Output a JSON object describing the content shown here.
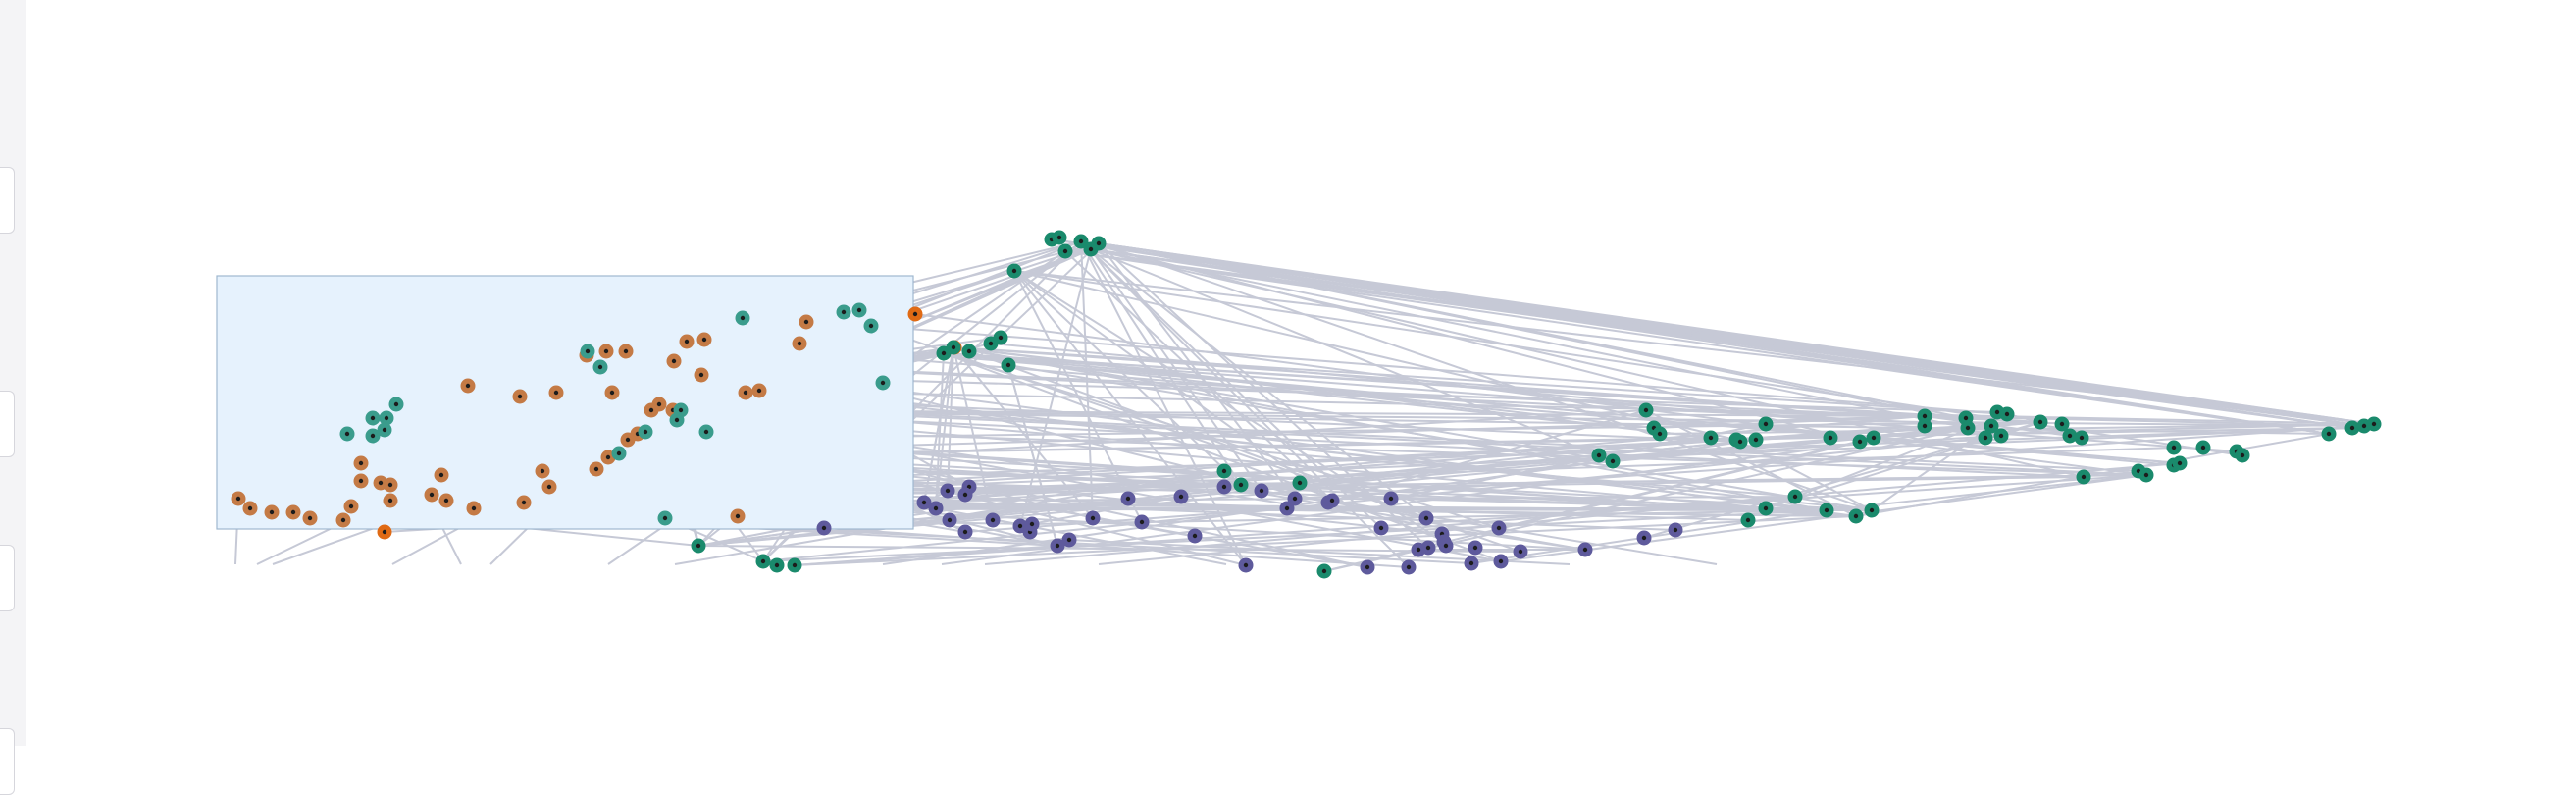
{
  "colors": {
    "background": "#ffffff",
    "edge": "#c6c9d6",
    "selection_fill": "#e6f2fd",
    "selection_stroke": "#9fb8cf",
    "group_orange": "#c47a45",
    "group_teal": "#3a9c8c",
    "group_green": "#1a8a6c",
    "group_purple": "#5e5a9c",
    "highlight_orange": "#e06a14"
  },
  "sidebar": {
    "tabs": [
      "tab",
      "tab",
      "tab",
      "tab"
    ]
  },
  "graph": {
    "selection_active": true,
    "node_groups": [
      "orange",
      "teal",
      "green",
      "purple",
      "highlight"
    ]
  }
}
